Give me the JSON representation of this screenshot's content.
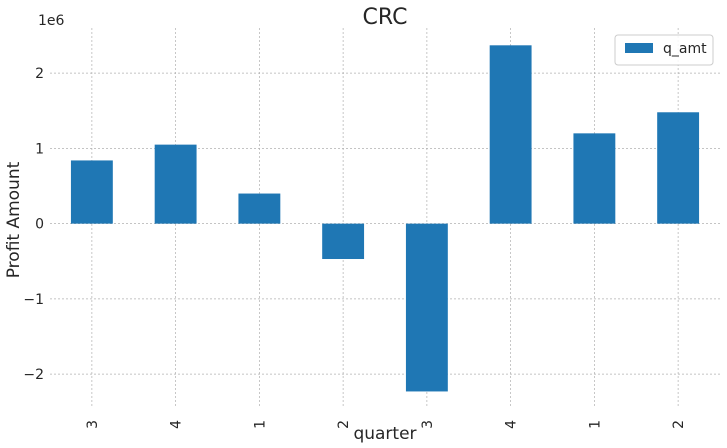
{
  "chart_data": {
    "type": "bar",
    "title": "CRC",
    "xlabel": "quarter",
    "ylabel": "Profit Amount",
    "y_offset_label": "1e6",
    "categories": [
      "3",
      "4",
      "1",
      "2",
      "3",
      "4",
      "1",
      "2"
    ],
    "series": [
      {
        "name": "q_amt",
        "values": [
          840000,
          1050000,
          400000,
          -470000,
          -2230000,
          2370000,
          1200000,
          1480000
        ]
      }
    ],
    "ylim": [
      -2450000,
      2600000
    ],
    "yticks": [
      -2,
      -1,
      0,
      1,
      2
    ],
    "ytick_labels": [
      "−2",
      "−1",
      "0",
      "1",
      "2"
    ],
    "ytick_scale": 1000000,
    "grid": true,
    "legend_position": "top-right",
    "colors": {
      "bar": "#1f77b4",
      "grid": "#b0b0b0",
      "text": "#262626"
    }
  }
}
